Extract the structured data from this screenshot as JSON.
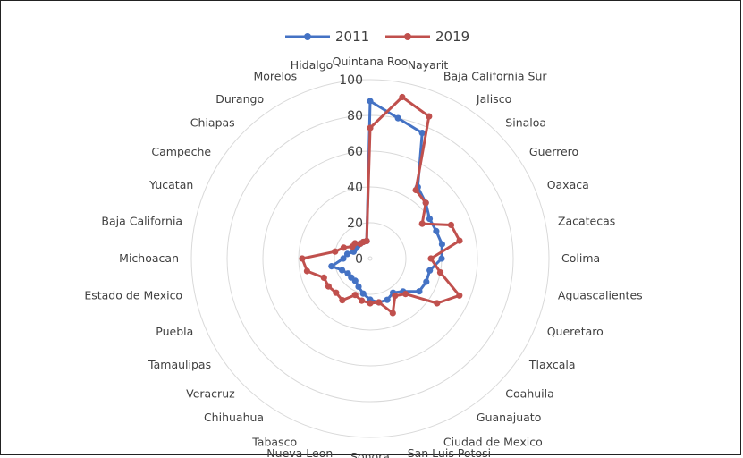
{
  "chart_data": {
    "type": "radar",
    "categories": [
      "Quintana Roo",
      "Nayarit",
      "Baja California Sur",
      "Jalisco",
      "Sinaloa",
      "Guerrero",
      "Oaxaca",
      "Zacatecas",
      "Colima",
      "Aguascalientes",
      "Queretaro",
      "Tlaxcala",
      "Coahuila",
      "Guanajuato",
      "Ciudad de Mexico",
      "San Luis Potosi",
      "Sonora",
      "Nueva Leon",
      "Tabasco",
      "Chihuahua",
      "Veracruz",
      "Tamaulipas",
      "Puebla",
      "Estado de Mexico",
      "Michoacan",
      "Baja California",
      "Yucatan",
      "Campeche",
      "Chiapas",
      "Durango",
      "Morelos",
      "Hidalgo"
    ],
    "series": [
      {
        "name": "2011",
        "color": "#4472C4",
        "values": [
          88,
          80,
          76,
          48,
          44,
          40,
          40,
          41,
          40,
          34,
          34,
          33,
          26,
          23,
          25,
          25,
          23,
          20,
          17,
          15,
          15,
          15,
          17,
          22,
          15,
          13,
          10,
          10,
          10,
          10,
          10,
          10
        ]
      },
      {
        "name": "2019",
        "color": "#C0504D",
        "values": [
          73,
          92,
          86,
          46,
          44,
          35,
          49,
          51,
          34,
          40,
          54,
          45,
          28,
          25,
          33,
          25,
          25,
          24,
          22,
          28,
          27,
          28,
          28,
          36,
          38,
          20,
          16,
          12,
          12,
          10,
          10,
          10
        ]
      }
    ],
    "r_ticks": [
      20,
      40,
      60,
      80,
      100
    ],
    "r_range": [
      0,
      100
    ],
    "legend_position": "top",
    "grid": true
  }
}
